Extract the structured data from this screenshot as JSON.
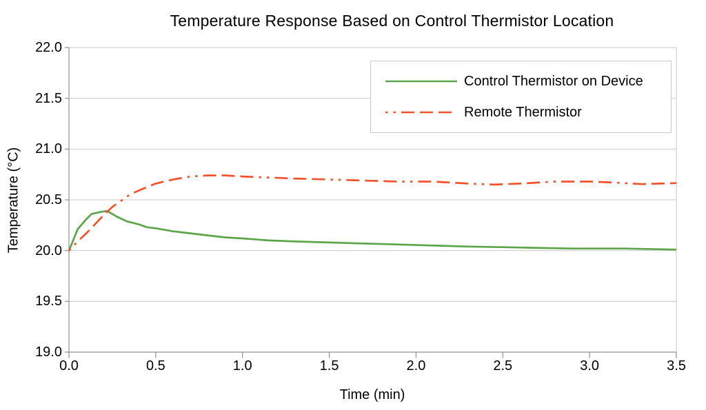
{
  "title": "Temperature Response Based on Control Thermistor Location",
  "axes": {
    "x": {
      "label": "Time (min)",
      "min": 0,
      "max": 3.5,
      "tick_values": [
        0,
        0.5,
        1,
        1.5,
        2,
        2.5,
        3,
        3.5
      ],
      "tick_labels": [
        "0.0",
        "0.5",
        "1.0",
        "1.5",
        "2.0",
        "2.5",
        "3.0",
        "3.5"
      ]
    },
    "y": {
      "label": "Temperature (°C)",
      "min": 19.0,
      "max": 22.0,
      "tick_values": [
        19,
        19.5,
        20,
        20.5,
        21,
        21.5,
        22
      ],
      "tick_labels": [
        "19.0",
        "19.5",
        "20.0",
        "20.5",
        "21.0",
        "21.5",
        "22.0"
      ]
    }
  },
  "legend": {
    "items": [
      {
        "label": "Control Thermistor on Device",
        "color": "#5ba548",
        "line_style": "solid"
      },
      {
        "label": "Remote Thermistor",
        "color": "#f4502a",
        "line_style": "dot-dot-dash-dash-dash"
      }
    ]
  },
  "colors": {
    "series_control": "#5ba548",
    "series_remote": "#f4502a",
    "gridline": "#c9c9c9",
    "axis": "#909090",
    "legend_border": "#c9c9c9",
    "text": "#000000",
    "background": "#ffffff"
  },
  "chart_data": {
    "type": "line",
    "title": "Temperature Response Based on Control Thermistor Location",
    "xlabel": "Time (min)",
    "ylabel": "Temperature (°C)",
    "xlim": [
      0,
      3.5
    ],
    "ylim": [
      19.0,
      22.0
    ],
    "grid": "horizontal-only",
    "legend_position": "inside-top-right",
    "series": [
      {
        "name": "Control Thermistor on Device",
        "color": "#5ba548",
        "line_style": "solid",
        "x": [
          0,
          0.05,
          0.1,
          0.13,
          0.18,
          0.22,
          0.27,
          0.33,
          0.4,
          0.45,
          0.5,
          0.6,
          0.7,
          0.8,
          0.9,
          1.0,
          1.15,
          1.3,
          1.5,
          1.7,
          1.9,
          2.1,
          2.3,
          2.6,
          2.9,
          3.2,
          3.5
        ],
        "y": [
          20.0,
          20.21,
          20.31,
          20.36,
          20.38,
          20.39,
          20.34,
          20.29,
          20.26,
          20.23,
          20.22,
          20.19,
          20.17,
          20.15,
          20.13,
          20.12,
          20.1,
          20.09,
          20.08,
          20.07,
          20.06,
          20.05,
          20.04,
          20.03,
          20.02,
          20.02,
          20.01
        ]
      },
      {
        "name": "Remote Thermistor",
        "color": "#f4502a",
        "line_style": "dot-dot-dash-dash-dash",
        "x": [
          0,
          0.05,
          0.1,
          0.15,
          0.2,
          0.25,
          0.3,
          0.35,
          0.4,
          0.5,
          0.6,
          0.7,
          0.8,
          0.9,
          1.0,
          1.15,
          1.3,
          1.5,
          1.7,
          1.9,
          2.1,
          2.3,
          2.45,
          2.6,
          2.8,
          3.0,
          3.15,
          3.3,
          3.5
        ],
        "y": [
          20.0,
          20.09,
          20.17,
          20.26,
          20.35,
          20.43,
          20.49,
          20.55,
          20.59,
          20.66,
          20.7,
          20.73,
          20.74,
          20.74,
          20.73,
          20.72,
          20.71,
          20.7,
          20.69,
          20.68,
          20.68,
          20.66,
          20.65,
          20.66,
          20.68,
          20.68,
          20.67,
          20.655,
          20.665
        ]
      }
    ]
  }
}
